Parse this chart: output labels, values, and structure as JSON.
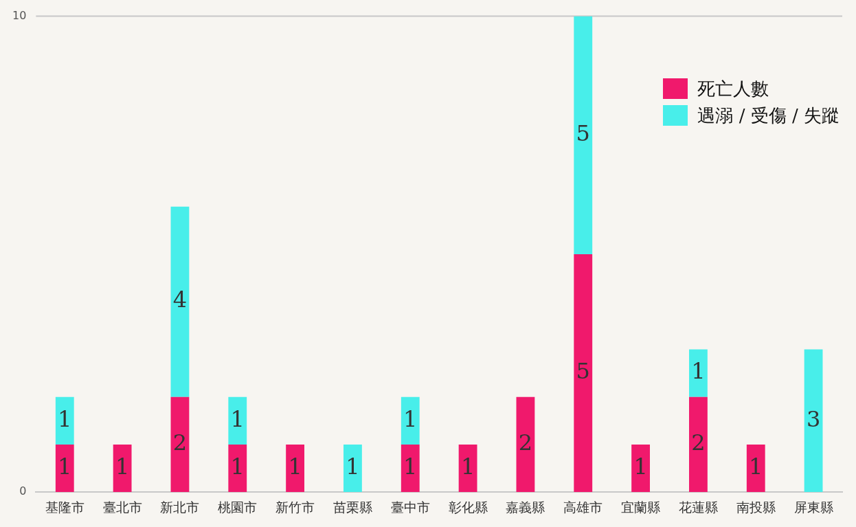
{
  "chart_data": {
    "type": "bar",
    "stacked": true,
    "categories": [
      "基隆市",
      "臺北市",
      "新北市",
      "桃園市",
      "新竹市",
      "苗栗縣",
      "臺中市",
      "彰化縣",
      "嘉義縣",
      "高雄市",
      "宜蘭縣",
      "花蓮縣",
      "南投縣",
      "屏東縣"
    ],
    "series": [
      {
        "name": "死亡人數",
        "color": "#f0196c",
        "values": [
          1,
          1,
          2,
          1,
          1,
          null,
          1,
          1,
          2,
          5,
          1,
          2,
          1,
          null
        ]
      },
      {
        "name": "遇溺 / 受傷 / 失蹤",
        "color": "#48eeea",
        "values": [
          1,
          null,
          4,
          1,
          null,
          1,
          1,
          null,
          null,
          5,
          null,
          1,
          null,
          3
        ]
      }
    ],
    "ylim": [
      0,
      10
    ],
    "yticks": [
      0,
      10
    ],
    "grid": false,
    "legend": "top right",
    "data_labels": true
  }
}
